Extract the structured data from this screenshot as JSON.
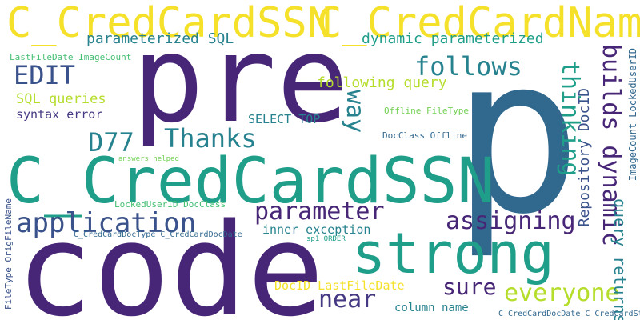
{
  "word_cloud": {
    "words": {
      "p": "p",
      "pre": "pre",
      "code": "code",
      "ssn_big": "C_CredCardSSN",
      "strong": "strong",
      "ssn_top": "C_CredCardSSN",
      "card_name": "C_CredCardName",
      "application": "application",
      "parameter": "parameter",
      "assigning": "assigning",
      "thanks": "Thanks",
      "follows": "follows",
      "d77": "D77",
      "edit": "EDIT",
      "near": "near",
      "everyone": "everyone",
      "sure": "sure",
      "way": "way",
      "thinking": "thinking",
      "builds_dynamic": "builds dynamic",
      "query_returns": "query returns",
      "repository_docid": "Repository DocID",
      "imagecount_lockeduserid": "ImageCount LockedUserID",
      "parameterized_sql": "parameterized SQL",
      "dynamic_parameterized": "dynamic parameterized",
      "following_query": "following query",
      "sql_queries": "SQL queries",
      "syntax_error": "syntax error",
      "select_top": "SELECT TOP",
      "inner_exception": "inner exception",
      "docid_lastfiledate": "DocID LastFileDate",
      "column_name": "column name",
      "lastfiledate_imagecount": "LastFileDate ImageCount",
      "offline_filetype": "Offline FileType",
      "docclass_offline": "DocClass Offline",
      "answers_helped": "answers helped",
      "lockeduserid_docclass": "LockedUserID DocClass",
      "ccdoctype_ccdocdate": "C_CredCardDocType C_CredCardDocDate",
      "sp1_order": "sp1 ORDER",
      "ccdocdate_ccstatus": "C_CredCardDocDate C_CredCardStatus",
      "filetype_origfilename": "FileType OrigFileName"
    },
    "palette": {
      "yellow": "#f5e12a",
      "lime": "#b5dd2b",
      "light_green": "#74d055",
      "green": "#43bf71",
      "teal": "#1f9e89",
      "teal_blue": "#26828e",
      "blue": "#31688e",
      "dark_blue": "#3a528b",
      "indigo": "#443983",
      "purple": "#482677"
    }
  }
}
